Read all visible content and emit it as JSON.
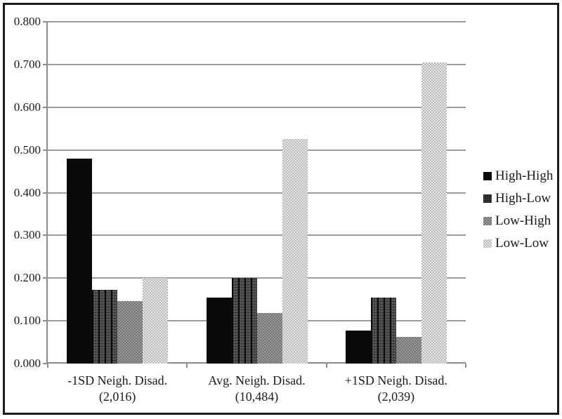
{
  "figure": {
    "background": "#ffffff",
    "border_color": "#1c1c1c",
    "grid_color": "#9c9c9c",
    "axis_color": "#8c8c8c",
    "text_color": "#1a1a1a"
  },
  "chart_data": {
    "type": "bar",
    "title": "",
    "xlabel": "",
    "ylabel": "",
    "categories": [
      "-1SD Neigh. Disad.",
      "Avg. Neigh. Disad.",
      "+1SD Neigh. Disad."
    ],
    "category_sublabels": [
      "(2,016)",
      "(10,484)",
      "(2,039)"
    ],
    "series": [
      {
        "name": "High-High",
        "style": "solid-black",
        "color": "#0a0a0a",
        "values": [
          0.48,
          0.155,
          0.078
        ]
      },
      {
        "name": "High-Low",
        "style": "dark-plaid",
        "color": "#4b4b4b",
        "values": [
          0.173,
          0.201,
          0.155
        ]
      },
      {
        "name": "Low-High",
        "style": "medium-checker",
        "color": "#8a8a8a",
        "values": [
          0.146,
          0.119,
          0.062
        ]
      },
      {
        "name": "Low-Low",
        "style": "light-checker",
        "color": "#d0d0d0",
        "values": [
          0.201,
          0.525,
          0.705
        ]
      }
    ],
    "ylim": [
      0.0,
      0.8
    ],
    "ytick_step": 0.1,
    "ytick_labels": [
      "0.000",
      "0.100",
      "0.200",
      "0.300",
      "0.400",
      "0.500",
      "0.600",
      "0.700",
      "0.800"
    ],
    "grid": true,
    "legend_position": "right"
  }
}
